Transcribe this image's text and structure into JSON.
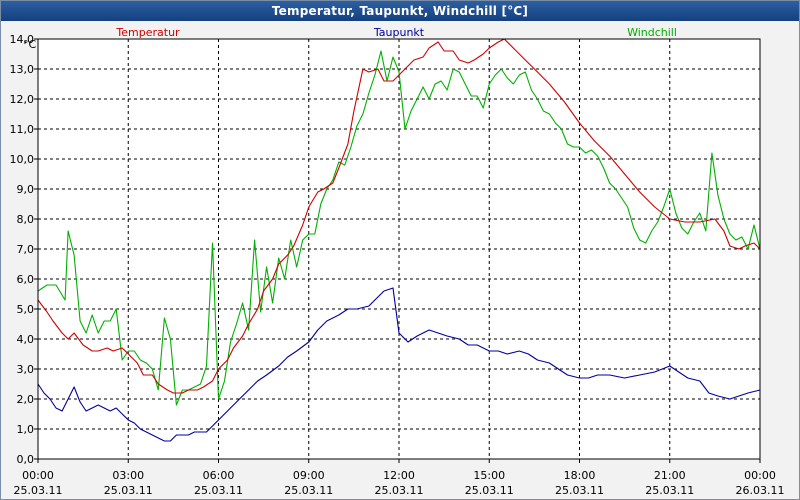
{
  "window": {
    "title": "Temperatur, Taupunkt, Windchill [°C]"
  },
  "chart_data": {
    "type": "line",
    "title": "Temperatur, Taupunkt, Windchill [°C]",
    "ylabel": "°C",
    "xlabel": "",
    "ylim": [
      0,
      14
    ],
    "xlim": [
      0,
      24
    ],
    "grid": true,
    "y_ticks": [
      "0,0",
      "1,0",
      "2,0",
      "3,0",
      "4,0",
      "5,0",
      "6,0",
      "7,0",
      "8,0",
      "9,0",
      "10,0",
      "11,0",
      "12,0",
      "13,0",
      "14,0"
    ],
    "x_ticks": [
      {
        "time": "00:00",
        "date": "25.03.11"
      },
      {
        "time": "03:00",
        "date": "25.03.11"
      },
      {
        "time": "06:00",
        "date": "25.03.11"
      },
      {
        "time": "09:00",
        "date": "25.03.11"
      },
      {
        "time": "12:00",
        "date": "25.03.11"
      },
      {
        "time": "15:00",
        "date": "25.03.11"
      },
      {
        "time": "18:00",
        "date": "25.03.11"
      },
      {
        "time": "21:00",
        "date": "25.03.11"
      },
      {
        "time": "00:00",
        "date": "26.03.11"
      }
    ],
    "series": [
      {
        "name": "Temperatur",
        "color": "#d00000",
        "x": [
          0,
          0.3,
          0.5,
          0.8,
          1.0,
          1.2,
          1.5,
          1.8,
          2.0,
          2.3,
          2.5,
          2.8,
          3.0,
          3.3,
          3.5,
          3.8,
          4.0,
          4.3,
          4.5,
          4.8,
          5.0,
          5.3,
          5.5,
          5.8,
          6.0,
          6.3,
          6.5,
          6.8,
          7.0,
          7.3,
          7.5,
          7.8,
          8.0,
          8.3,
          8.5,
          8.8,
          9.0,
          9.3,
          9.5,
          9.8,
          10.0,
          10.3,
          10.5,
          10.8,
          11.0,
          11.3,
          11.5,
          11.8,
          12.0,
          12.3,
          12.5,
          12.8,
          13.0,
          13.3,
          13.5,
          13.8,
          14.0,
          14.3,
          14.5,
          14.8,
          15.0,
          15.3,
          15.5,
          15.8,
          16.0,
          16.5,
          17.0,
          17.5,
          18.0,
          18.5,
          19.0,
          19.5,
          20.0,
          20.5,
          21.0,
          21.5,
          22.0,
          22.5,
          22.8,
          23.0,
          23.3,
          23.5,
          23.8,
          24.0
        ],
        "values": [
          5.3,
          4.9,
          4.6,
          4.2,
          4.0,
          4.2,
          3.8,
          3.6,
          3.6,
          3.7,
          3.6,
          3.7,
          3.5,
          3.2,
          2.8,
          2.8,
          2.5,
          2.3,
          2.2,
          2.2,
          2.3,
          2.3,
          2.4,
          2.6,
          3.0,
          3.3,
          3.7,
          4.1,
          4.5,
          5.0,
          5.6,
          6.0,
          6.5,
          6.8,
          7.1,
          7.8,
          8.4,
          8.9,
          9.0,
          9.2,
          9.7,
          10.5,
          11.6,
          13.0,
          12.9,
          13.0,
          12.6,
          12.6,
          12.8,
          13.1,
          13.3,
          13.4,
          13.7,
          13.9,
          13.6,
          13.6,
          13.3,
          13.2,
          13.3,
          13.5,
          13.7,
          13.9,
          14.0,
          13.7,
          13.5,
          13.0,
          12.5,
          11.9,
          11.2,
          10.6,
          10.1,
          9.5,
          8.9,
          8.4,
          8.0,
          7.9,
          7.9,
          8.0,
          7.6,
          7.1,
          7.0,
          7.1,
          7.2,
          7.0
        ]
      },
      {
        "name": "Taupunkt",
        "color": "#0000a0",
        "x": [
          0,
          0.2,
          0.4,
          0.6,
          0.8,
          1.0,
          1.2,
          1.4,
          1.6,
          1.8,
          2.0,
          2.2,
          2.4,
          2.6,
          2.8,
          3.0,
          3.2,
          3.4,
          3.6,
          3.8,
          4.0,
          4.2,
          4.4,
          4.6,
          4.8,
          5.0,
          5.2,
          5.4,
          5.6,
          5.8,
          6.0,
          6.3,
          6.6,
          7.0,
          7.3,
          7.6,
          8.0,
          8.3,
          8.6,
          9.0,
          9.3,
          9.6,
          10.0,
          10.3,
          10.6,
          11.0,
          11.3,
          11.5,
          11.8,
          12.0,
          12.3,
          12.6,
          13.0,
          13.3,
          13.6,
          14.0,
          14.3,
          14.6,
          15.0,
          15.3,
          15.6,
          16.0,
          16.3,
          16.6,
          17.0,
          17.3,
          17.6,
          18.0,
          18.3,
          18.6,
          19.0,
          19.5,
          20.0,
          20.5,
          21.0,
          21.3,
          21.6,
          22.0,
          22.3,
          22.6,
          23.0,
          23.3,
          23.6,
          24.0
        ],
        "values": [
          2.5,
          2.2,
          2.0,
          1.7,
          1.6,
          2.0,
          2.4,
          1.9,
          1.6,
          1.7,
          1.8,
          1.7,
          1.6,
          1.7,
          1.5,
          1.3,
          1.2,
          1.0,
          0.9,
          0.8,
          0.7,
          0.6,
          0.6,
          0.8,
          0.8,
          0.8,
          0.9,
          0.9,
          0.9,
          1.1,
          1.3,
          1.6,
          1.9,
          2.3,
          2.6,
          2.8,
          3.1,
          3.4,
          3.6,
          3.9,
          4.3,
          4.6,
          4.8,
          5.0,
          5.0,
          5.1,
          5.4,
          5.6,
          5.7,
          4.2,
          3.9,
          4.1,
          4.3,
          4.2,
          4.1,
          4.0,
          3.8,
          3.8,
          3.6,
          3.6,
          3.5,
          3.6,
          3.5,
          3.3,
          3.2,
          3.0,
          2.8,
          2.7,
          2.7,
          2.8,
          2.8,
          2.7,
          2.8,
          2.9,
          3.1,
          2.9,
          2.7,
          2.6,
          2.2,
          2.1,
          2.0,
          2.1,
          2.2,
          2.3
        ]
      },
      {
        "name": "Windchill",
        "color": "#00b000",
        "x": [
          0,
          0.3,
          0.6,
          0.9,
          1.0,
          1.2,
          1.4,
          1.6,
          1.8,
          2.0,
          2.2,
          2.4,
          2.6,
          2.8,
          3.0,
          3.2,
          3.4,
          3.6,
          3.8,
          4.0,
          4.2,
          4.4,
          4.6,
          4.8,
          5.0,
          5.2,
          5.4,
          5.6,
          5.8,
          6.0,
          6.2,
          6.4,
          6.6,
          6.8,
          7.0,
          7.2,
          7.4,
          7.6,
          7.8,
          8.0,
          8.2,
          8.4,
          8.6,
          8.8,
          9.0,
          9.2,
          9.4,
          9.6,
          9.8,
          10.0,
          10.2,
          10.4,
          10.6,
          10.8,
          11.0,
          11.2,
          11.4,
          11.6,
          11.8,
          12.0,
          12.2,
          12.4,
          12.6,
          12.8,
          13.0,
          13.2,
          13.4,
          13.6,
          13.8,
          14.0,
          14.2,
          14.4,
          14.6,
          14.8,
          15.0,
          15.2,
          15.4,
          15.6,
          15.8,
          16.0,
          16.2,
          16.4,
          16.6,
          16.8,
          17.0,
          17.2,
          17.4,
          17.6,
          17.8,
          18.0,
          18.2,
          18.4,
          18.6,
          18.8,
          19.0,
          19.2,
          19.4,
          19.6,
          19.8,
          20.0,
          20.2,
          20.4,
          20.6,
          20.8,
          21.0,
          21.2,
          21.4,
          21.6,
          21.8,
          22.0,
          22.2,
          22.4,
          22.6,
          22.8,
          23.0,
          23.2,
          23.4,
          23.6,
          23.8,
          24.0
        ],
        "values": [
          5.6,
          5.8,
          5.8,
          5.3,
          7.6,
          6.8,
          4.6,
          4.2,
          4.8,
          4.2,
          4.6,
          4.6,
          5.0,
          3.3,
          3.6,
          3.6,
          3.3,
          3.2,
          3.0,
          2.3,
          4.7,
          4.0,
          1.8,
          2.3,
          2.3,
          2.4,
          2.5,
          3.1,
          7.2,
          2.0,
          2.6,
          3.9,
          4.5,
          5.2,
          4.3,
          7.3,
          4.9,
          6.4,
          5.2,
          6.7,
          6.0,
          7.3,
          6.4,
          7.3,
          7.5,
          7.5,
          8.5,
          9.0,
          9.3,
          9.9,
          9.8,
          10.4,
          11.1,
          11.5,
          12.2,
          12.8,
          13.6,
          12.6,
          13.4,
          12.9,
          11.0,
          11.6,
          12.0,
          12.4,
          12.0,
          12.5,
          12.6,
          12.3,
          13.0,
          12.9,
          12.5,
          12.1,
          12.1,
          11.7,
          12.5,
          12.8,
          13.0,
          12.7,
          12.5,
          12.8,
          12.9,
          12.3,
          12.0,
          11.6,
          11.5,
          11.2,
          11.0,
          10.5,
          10.4,
          10.4,
          10.2,
          10.3,
          10.1,
          9.7,
          9.2,
          9.0,
          8.7,
          8.4,
          7.7,
          7.3,
          7.2,
          7.6,
          7.9,
          8.4,
          9.0,
          8.2,
          7.7,
          7.5,
          7.9,
          8.2,
          7.6,
          10.2,
          8.8,
          8.0,
          7.5,
          7.3,
          7.4,
          7.0,
          7.8,
          7.0
        ]
      }
    ]
  }
}
